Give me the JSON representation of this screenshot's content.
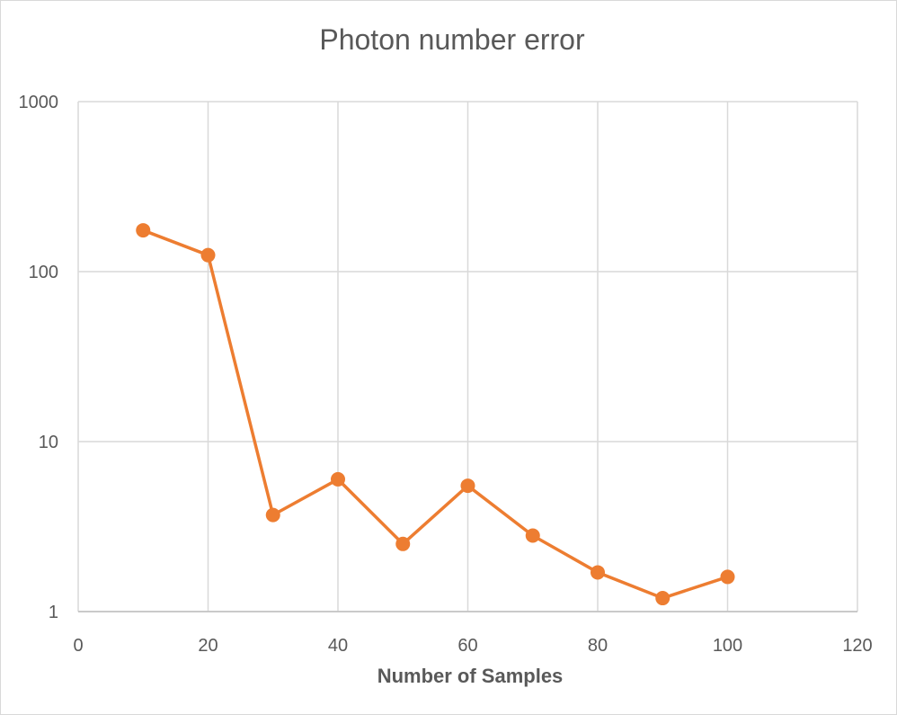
{
  "chart_data": {
    "type": "line",
    "title": "Photon number error",
    "xlabel": "Number of Samples",
    "ylabel": "",
    "y_scale": "log",
    "xlim": [
      0,
      120
    ],
    "ylim": [
      1,
      1000
    ],
    "x_ticks": [
      "0",
      "20",
      "40",
      "60",
      "80",
      "100",
      "120"
    ],
    "y_ticks": [
      "1",
      "10",
      "100",
      "1000"
    ],
    "grid": true,
    "legend": "none",
    "series": [
      {
        "color": "#ed7d31",
        "x": [
          10,
          20,
          30,
          40,
          50,
          60,
          70,
          80,
          90,
          100
        ],
        "values": [
          175,
          125,
          3.7,
          6.0,
          2.5,
          5.5,
          2.8,
          1.7,
          1.2,
          1.6
        ]
      }
    ]
  }
}
